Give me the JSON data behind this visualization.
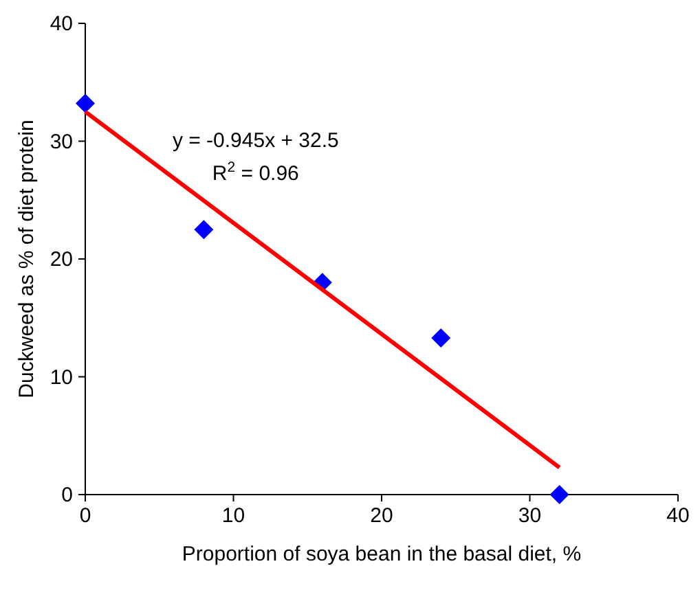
{
  "chart_data": {
    "type": "scatter",
    "xlabel": "Proportion of soya bean in the basal diet, %",
    "ylabel": "Duckweed as % of diet protein",
    "xlim": [
      0,
      40
    ],
    "ylim": [
      0,
      40
    ],
    "xticks": [
      0,
      10,
      20,
      30,
      40
    ],
    "yticks": [
      0,
      10,
      20,
      30,
      40
    ],
    "series": [
      {
        "color": "#0000ff",
        "marker": "diamond",
        "x": [
          0,
          8,
          16,
          24,
          32
        ],
        "values": [
          33.2,
          22.5,
          18.0,
          13.3,
          0
        ]
      },
      {
        "type": "line",
        "color": "#ff0000",
        "x": [
          0,
          32
        ],
        "values": [
          32.5,
          2.3
        ]
      }
    ],
    "annotations": [
      "y = -0.945x + 32.5",
      "R$^{2}$ = 0.96"
    ]
  }
}
